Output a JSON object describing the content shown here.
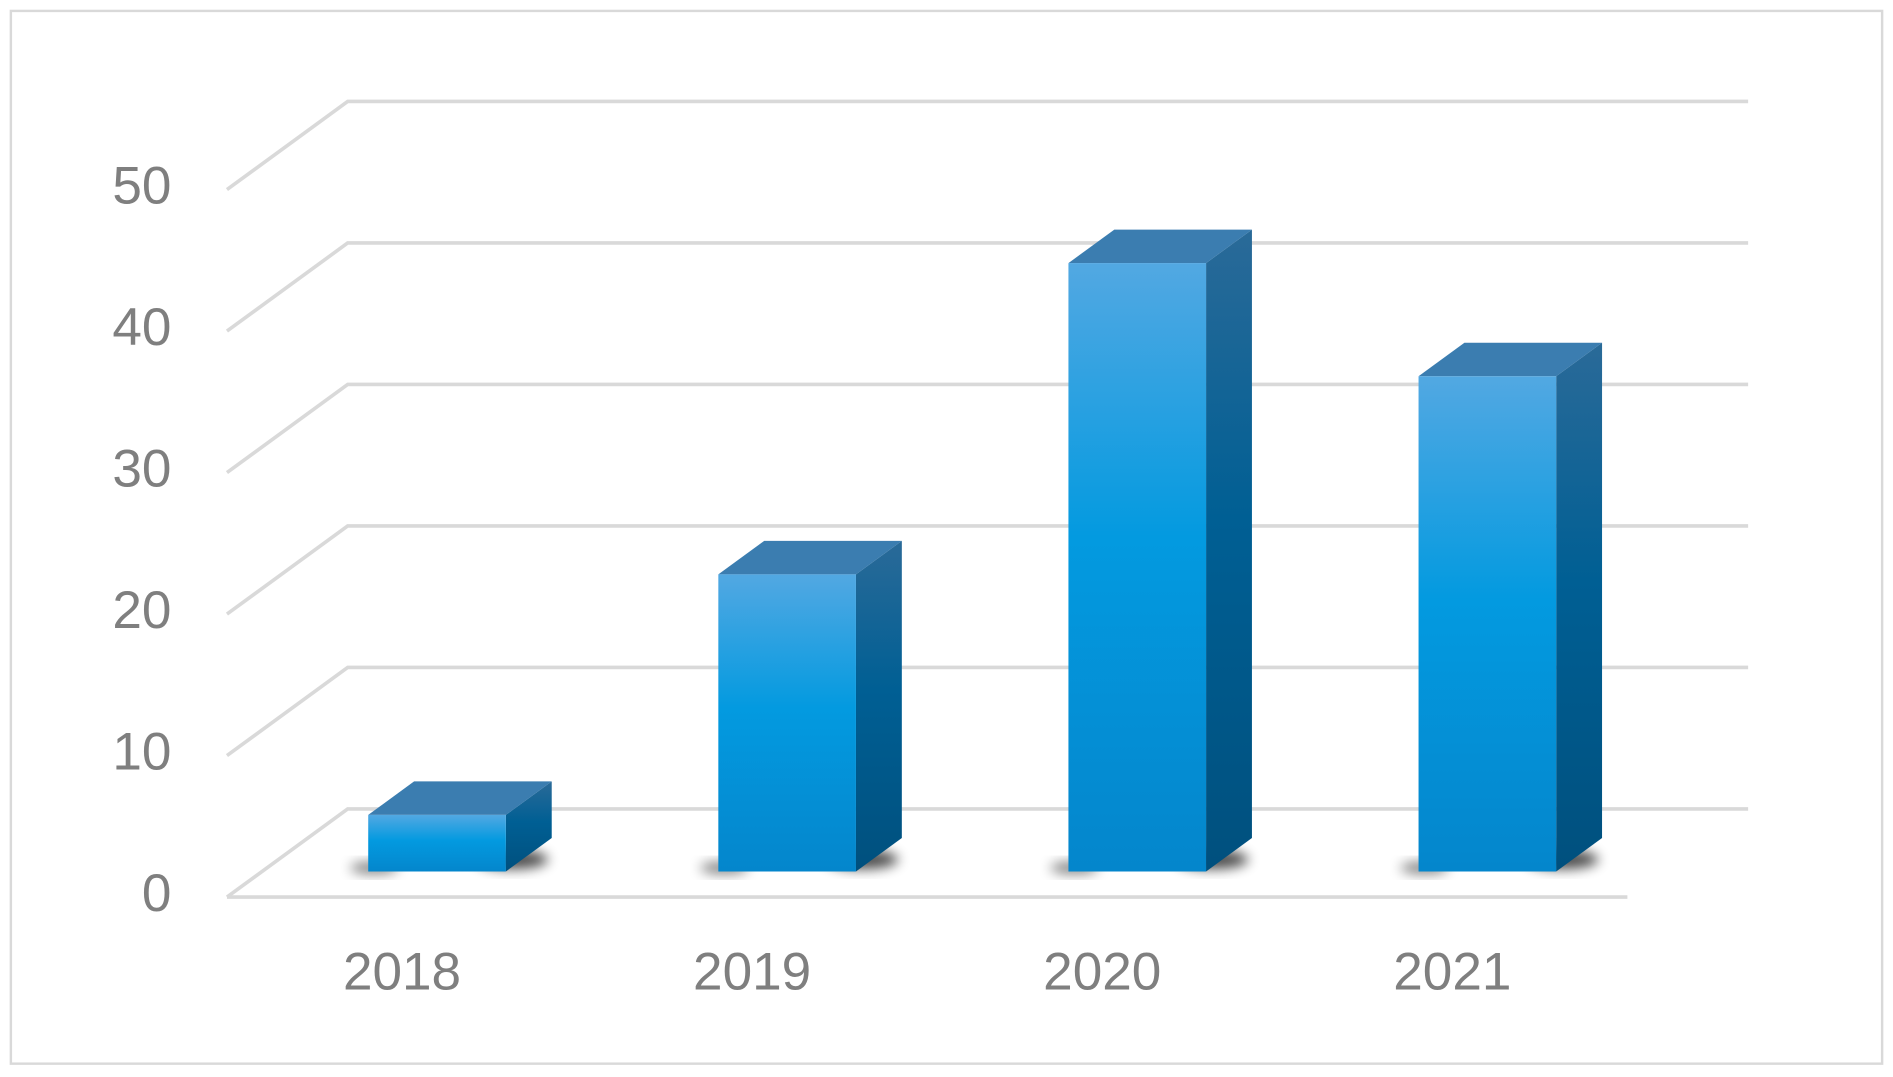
{
  "chart_data": {
    "type": "bar3d",
    "categories": [
      "2018",
      "2019",
      "2020",
      "2021"
    ],
    "values": [
      4,
      21,
      43,
      35
    ],
    "color": "#0a98dc",
    "ylim": [
      0,
      50
    ],
    "yticks": [
      0,
      10,
      20,
      30,
      40,
      50
    ],
    "grid": true
  }
}
